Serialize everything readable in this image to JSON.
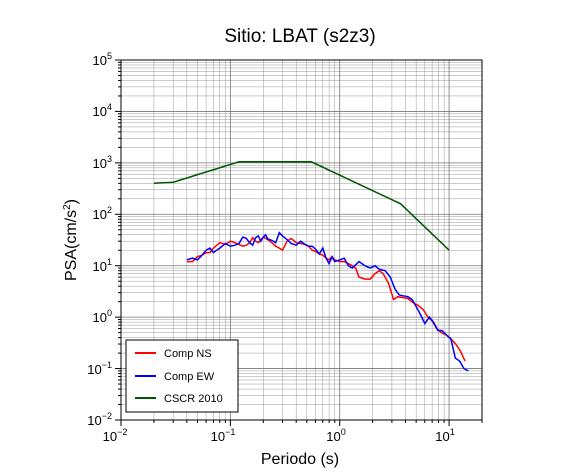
{
  "chart_data": {
    "type": "line",
    "title": "Sitio: LBAT (s2z3)",
    "xlabel": "Periodo (s)",
    "ylabel": "PSA(cm/s",
    "ylabel_sup": "2",
    "ylabel_close": ")",
    "x_scale": "log",
    "y_scale": "log",
    "xlim": [
      0.01,
      20
    ],
    "ylim": [
      0.01,
      100000
    ],
    "x_ticks": [
      {
        "base": "10",
        "exp": "−2",
        "value": 0.01
      },
      {
        "base": "10",
        "exp": "−1",
        "value": 0.1
      },
      {
        "base": "10",
        "exp": "0",
        "value": 1
      },
      {
        "base": "10",
        "exp": "1",
        "value": 10
      }
    ],
    "y_ticks": [
      {
        "base": "10",
        "exp": "−2",
        "value": 0.01
      },
      {
        "base": "10",
        "exp": "−1",
        "value": 0.1
      },
      {
        "base": "10",
        "exp": "0",
        "value": 1
      },
      {
        "base": "10",
        "exp": "1",
        "value": 10
      },
      {
        "base": "10",
        "exp": "2",
        "value": 100
      },
      {
        "base": "10",
        "exp": "3",
        "value": 1000
      },
      {
        "base": "10",
        "exp": "4",
        "value": 10000
      },
      {
        "base": "10",
        "exp": "5",
        "value": 100000
      }
    ],
    "grid": true,
    "legend_position": "bottom-left",
    "series": [
      {
        "name": "Comp NS",
        "color": "#ff0000",
        "x": [
          0.04,
          0.045,
          0.05,
          0.055,
          0.06,
          0.065,
          0.07,
          0.08,
          0.09,
          0.1,
          0.11,
          0.12,
          0.13,
          0.14,
          0.15,
          0.16,
          0.17,
          0.18,
          0.2,
          0.22,
          0.24,
          0.26,
          0.28,
          0.3,
          0.33,
          0.36,
          0.4,
          0.44,
          0.48,
          0.52,
          0.56,
          0.6,
          0.65,
          0.7,
          0.75,
          0.8,
          0.85,
          0.9,
          1.0,
          1.1,
          1.2,
          1.3,
          1.4,
          1.5,
          1.7,
          1.9,
          2.1,
          2.3,
          2.5,
          2.8,
          3.1,
          3.4,
          3.8,
          4.2,
          4.7,
          5.2,
          5.8,
          6.4,
          7.0,
          7.7,
          8.5,
          9.4,
          10.4,
          11.5,
          12.7,
          14.0
        ],
        "y": [
          12,
          12,
          15,
          16,
          18,
          18,
          22,
          28,
          26,
          30,
          28,
          26,
          24,
          25,
          28,
          35,
          30,
          28,
          36,
          32,
          28,
          24,
          22,
          20,
          30,
          34,
          28,
          27,
          26,
          24,
          20,
          19,
          17,
          16,
          14,
          13,
          15,
          13,
          12,
          12,
          11,
          10,
          9,
          6,
          5.5,
          5.5,
          7,
          8,
          7,
          4.5,
          2.2,
          2.5,
          2.4,
          2.3,
          1.9,
          1.7,
          1.4,
          1.0,
          0.85,
          0.6,
          0.5,
          0.45,
          0.38,
          0.3,
          0.22,
          0.14
        ]
      },
      {
        "name": "Comp EW",
        "color": "#0000ff",
        "x": [
          0.04,
          0.045,
          0.05,
          0.055,
          0.06,
          0.065,
          0.07,
          0.075,
          0.08,
          0.09,
          0.1,
          0.11,
          0.12,
          0.13,
          0.14,
          0.15,
          0.16,
          0.17,
          0.18,
          0.19,
          0.2,
          0.21,
          0.22,
          0.24,
          0.26,
          0.28,
          0.3,
          0.33,
          0.36,
          0.4,
          0.44,
          0.48,
          0.52,
          0.56,
          0.6,
          0.65,
          0.7,
          0.75,
          0.8,
          0.85,
          0.9,
          1.0,
          1.1,
          1.2,
          1.3,
          1.5,
          1.7,
          1.9,
          2.1,
          2.3,
          2.6,
          2.9,
          3.2,
          3.5,
          3.8,
          4.2,
          4.6,
          5.0,
          5.5,
          6.0,
          6.6,
          7.2,
          7.9,
          8.6,
          9.5,
          10.4,
          11.4,
          12.5,
          13.7,
          15.0
        ],
        "y": [
          13,
          14,
          13,
          16,
          20,
          22,
          18,
          20,
          22,
          27,
          24,
          25,
          27,
          36,
          34,
          28,
          25,
          35,
          38,
          30,
          36,
          40,
          33,
          31,
          28,
          44,
          38,
          32,
          27,
          25,
          30,
          26,
          24,
          24,
          21,
          17,
          22,
          14,
          11,
          15,
          12,
          13,
          14,
          10,
          9,
          12,
          10,
          9,
          10,
          8.5,
          8,
          6,
          3.5,
          2.7,
          2.6,
          2.5,
          2.2,
          1.6,
          1.1,
          0.75,
          1.0,
          0.8,
          0.55,
          0.55,
          0.45,
          0.38,
          0.16,
          0.14,
          0.1,
          0.09
        ]
      },
      {
        "name": "CSCR 2010",
        "color": "#005500",
        "x": [
          0.02,
          0.03,
          0.12,
          0.55,
          3.6,
          10.0
        ],
        "y": [
          400,
          420,
          1050,
          1050,
          160,
          20
        ]
      }
    ]
  }
}
